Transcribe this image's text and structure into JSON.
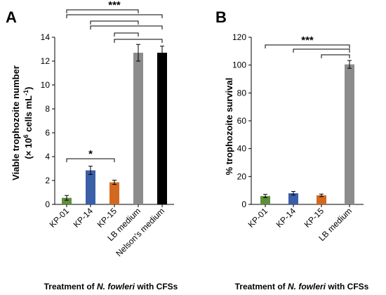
{
  "chart_data": [
    {
      "panel": "A",
      "type": "bar",
      "categories": [
        "KP-01",
        "KP-14",
        "KP-15",
        "LB medium",
        "Nelson's medium"
      ],
      "values": [
        0.55,
        2.85,
        1.85,
        12.7,
        12.7
      ],
      "errors": [
        0.2,
        0.35,
        0.18,
        0.7,
        0.55
      ],
      "colors": [
        "#5e8f3c",
        "#3a5ea8",
        "#d2691e",
        "#8c8c8c",
        "#000000"
      ],
      "ylabel_line1": "Viable trophozoite number",
      "ylabel_line2_pre": "(× 10",
      "ylabel_line2_sup1": "6",
      "ylabel_line2_mid": " cells mL",
      "ylabel_line2_sup2": "-1",
      "ylabel_line2_post": ")",
      "xlabel_pre": "Treatment of ",
      "xlabel_italic": "N. fowleri",
      "xlabel_post": " with CFSs",
      "ylim": [
        0,
        14
      ],
      "yticks": [
        0,
        2,
        4,
        6,
        8,
        10,
        12,
        14
      ],
      "significance": [
        {
          "label": "***",
          "brackets": [
            [
              0,
              3
            ],
            [
              0,
              4
            ],
            [
              1,
              3
            ],
            [
              1,
              4
            ],
            [
              2,
              3
            ],
            [
              2,
              4
            ]
          ]
        },
        {
          "label": "*",
          "brackets": [
            [
              0,
              2
            ]
          ]
        }
      ]
    },
    {
      "panel": "B",
      "type": "bar",
      "categories": [
        "KP-01",
        "KP-14",
        "KP-15",
        "LB medium"
      ],
      "values": [
        6,
        8,
        6.5,
        100.5
      ],
      "errors": [
        1.2,
        1.3,
        0.9,
        2.8
      ],
      "colors": [
        "#5e8f3c",
        "#3a5ea8",
        "#d2691e",
        "#8c8c8c"
      ],
      "ylabel": "% trophozoite survival",
      "xlabel_pre": "Treatment of ",
      "xlabel_italic": "N. fowleri",
      "xlabel_post": " with CFSs",
      "ylim": [
        0,
        120
      ],
      "yticks": [
        0,
        20,
        40,
        60,
        80,
        100,
        120
      ],
      "significance": [
        {
          "label": "***",
          "brackets": [
            [
              0,
              3
            ],
            [
              1,
              3
            ],
            [
              2,
              3
            ]
          ]
        }
      ]
    }
  ]
}
